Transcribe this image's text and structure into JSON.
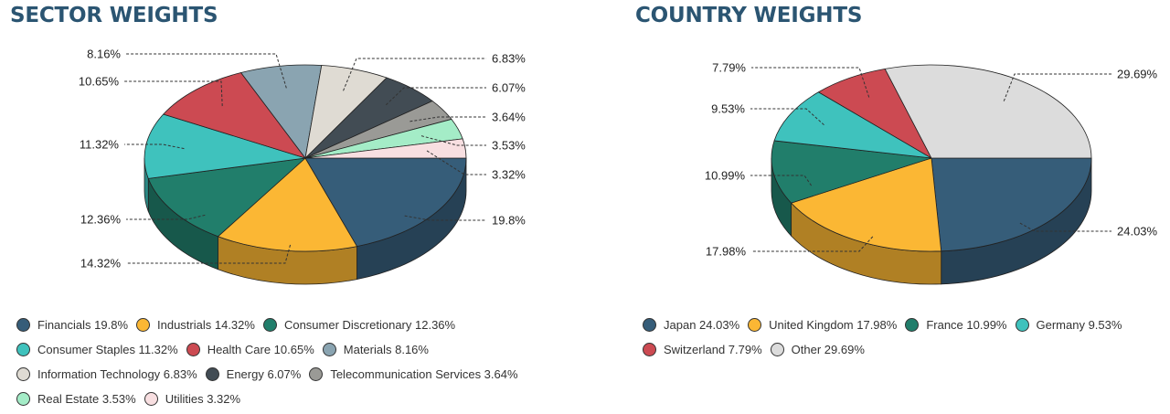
{
  "chart_data": [
    {
      "type": "pie",
      "title": "SECTOR WEIGHTS",
      "unit": "%",
      "slices": [
        {
          "name": "Financials",
          "value": 19.8,
          "label": "19.8%",
          "color": "#365d79"
        },
        {
          "name": "Industrials",
          "value": 14.32,
          "label": "14.32%",
          "color": "#fbb734"
        },
        {
          "name": "Consumer Discretionary",
          "value": 12.36,
          "label": "12.36%",
          "color": "#217e6b"
        },
        {
          "name": "Consumer Staples",
          "value": 11.32,
          "label": "11.32%",
          "color": "#3fc2bd"
        },
        {
          "name": "Health Care",
          "value": 10.65,
          "label": "10.65%",
          "color": "#cc4a52"
        },
        {
          "name": "Materials",
          "value": 8.16,
          "label": "8.16%",
          "color": "#8aa4b1"
        },
        {
          "name": "Information Technology",
          "value": 6.83,
          "label": "6.83%",
          "color": "#dfdbd3"
        },
        {
          "name": "Energy",
          "value": 6.07,
          "label": "6.07%",
          "color": "#424c54"
        },
        {
          "name": "Telecommunication Services",
          "value": 3.64,
          "label": "3.64%",
          "color": "#9a9a96"
        },
        {
          "name": "Real Estate",
          "value": 3.53,
          "label": "3.53%",
          "color": "#a4ecc7"
        },
        {
          "name": "Utilities",
          "value": 3.32,
          "label": "3.32%",
          "color": "#f8dfe1"
        }
      ],
      "legend_rows": [
        [
          {
            "i": 0,
            "text": "Financials 19.8%"
          },
          {
            "i": 1,
            "text": "Industrials 14.32%"
          },
          {
            "i": 2,
            "text": "Consumer Discretionary 12.36%"
          }
        ],
        [
          {
            "i": 3,
            "text": "Consumer Staples 11.32%"
          },
          {
            "i": 4,
            "text": "Health Care 10.65%"
          },
          {
            "i": 5,
            "text": "Materials 8.16%"
          }
        ],
        [
          {
            "i": 6,
            "text": "Information Technology 6.83%"
          },
          {
            "i": 7,
            "text": "Energy 6.07%"
          },
          {
            "i": 8,
            "text": "Telecommunication Services 3.64%"
          }
        ],
        [
          {
            "i": 9,
            "text": "Real Estate 3.53%"
          },
          {
            "i": 10,
            "text": "Utilities 3.32%"
          }
        ]
      ]
    },
    {
      "type": "pie",
      "title": "COUNTRY WEIGHTS",
      "unit": "%",
      "slices": [
        {
          "name": "Japan",
          "value": 24.03,
          "label": "24.03%",
          "color": "#365d79"
        },
        {
          "name": "United Kingdom",
          "value": 17.98,
          "label": "17.98%",
          "color": "#fbb734"
        },
        {
          "name": "France",
          "value": 10.99,
          "label": "10.99%",
          "color": "#217e6b"
        },
        {
          "name": "Germany",
          "value": 9.53,
          "label": "9.53%",
          "color": "#3fc2bd"
        },
        {
          "name": "Switzerland",
          "value": 7.79,
          "label": "7.79%",
          "color": "#cc4a52"
        },
        {
          "name": "Other",
          "value": 29.69,
          "label": "29.69%",
          "color": "#dcdcdc"
        }
      ],
      "legend_rows": [
        [
          {
            "i": 0,
            "text": "Japan 24.03%"
          },
          {
            "i": 1,
            "text": "United Kingdom 17.98%"
          },
          {
            "i": 2,
            "text": "France 10.99%"
          },
          {
            "i": 3,
            "text": "Germany 9.53%"
          }
        ],
        [
          {
            "i": 4,
            "text": "Switzerland 7.79%"
          },
          {
            "i": 5,
            "text": "Other 29.69%"
          }
        ]
      ]
    }
  ]
}
